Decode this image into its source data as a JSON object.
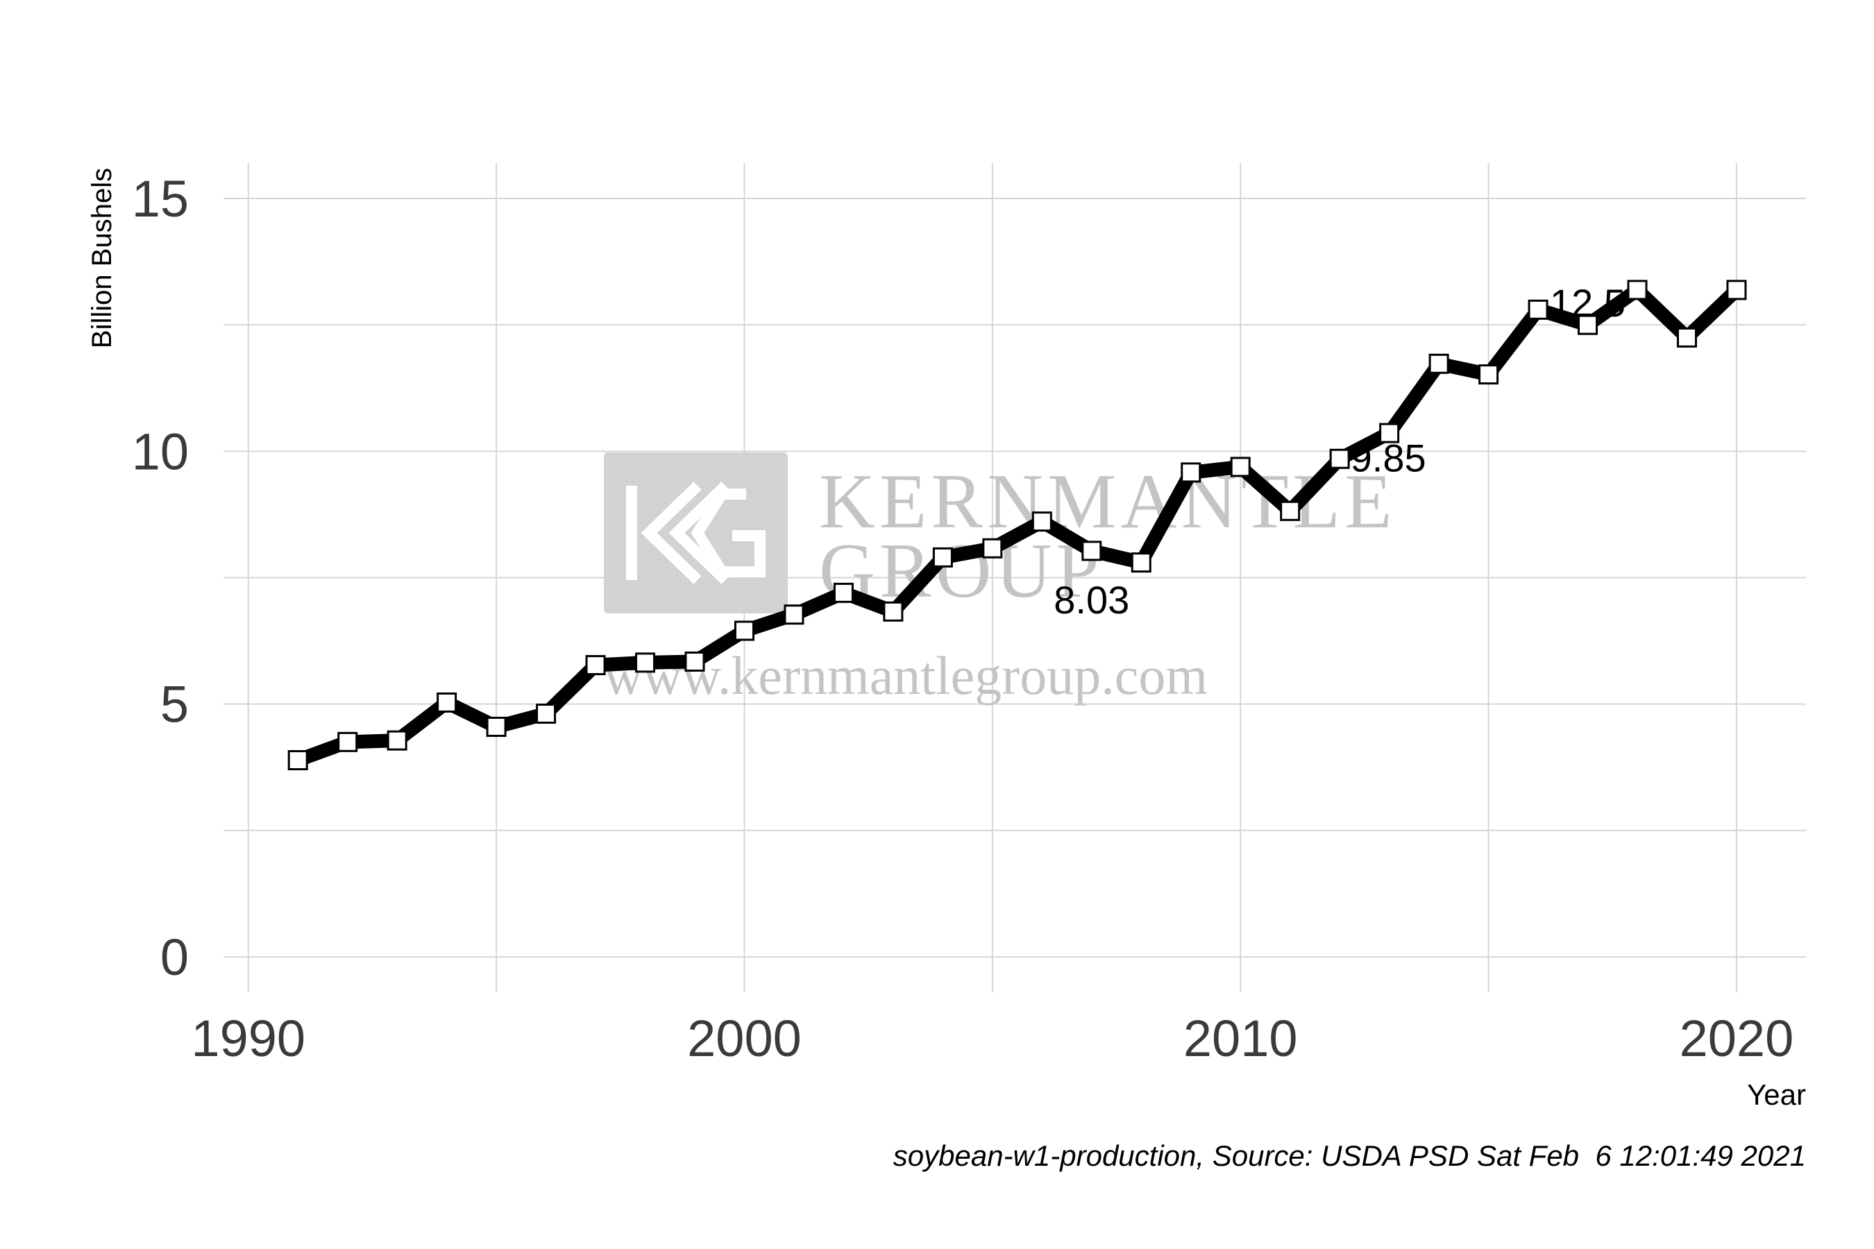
{
  "chart_data": {
    "type": "line",
    "title": "",
    "xlabel": "Year",
    "ylabel": "Billion Bushels",
    "xlim": [
      1989.5,
      2021.4
    ],
    "ylim": [
      -0.7,
      15.7
    ],
    "x_ticks": [
      1990,
      2000,
      2010,
      2020
    ],
    "y_ticks": [
      0,
      5,
      10,
      15
    ],
    "grid": true,
    "legend": "none",
    "series": [
      {
        "x": [
          1991,
          1992,
          1993,
          1994,
          1995,
          1996,
          1997,
          1998,
          1999,
          2000,
          2001,
          2002,
          2003,
          2004,
          2005,
          2006,
          2007,
          2008,
          2009,
          2010,
          2011,
          2012,
          2013,
          2014,
          2015,
          2016,
          2017,
          2018,
          2019,
          2020
        ],
        "values": [
          3.89,
          4.25,
          4.28,
          5.03,
          4.55,
          4.81,
          5.77,
          5.82,
          5.84,
          6.45,
          6.77,
          7.2,
          6.83,
          7.9,
          8.08,
          8.61,
          8.03,
          7.8,
          9.58,
          9.69,
          8.82,
          9.85,
          10.36,
          11.73,
          11.52,
          12.8,
          12.5,
          13.19,
          12.25,
          13.19
        ]
      }
    ],
    "annotations": [
      {
        "x": 2007,
        "y": 8.03,
        "text": "8.03"
      },
      {
        "x": 2012,
        "y": 9.85,
        "text": "9.85"
      },
      {
        "x": 2017,
        "y": 12.5,
        "text": "12.5"
      }
    ],
    "caption": "soybean-w1-production, Source: USDA PSD Sat Feb  6 12:01:49 2021",
    "colors": {
      "line": "#000000",
      "marker_fill": "#ffffff",
      "grid": "#d6d6d6",
      "watermark": "#c4c4c4"
    }
  },
  "watermark": {
    "logo": "KG",
    "line1": "KERNMANTLE",
    "line2": "GROUP",
    "url": "www.kernmantlegroup.com"
  }
}
